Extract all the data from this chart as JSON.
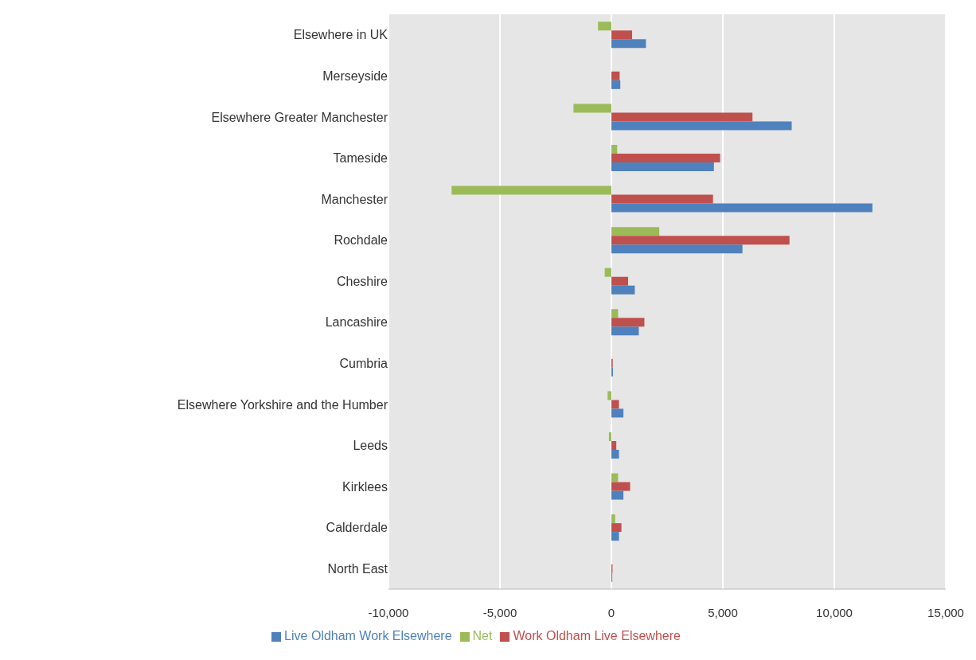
{
  "chart_data": {
    "type": "bar",
    "orientation": "horizontal",
    "categories": [
      "Elsewhere in UK",
      "Merseyside",
      "Elsewhere Greater Manchester",
      "Tameside",
      "Manchester",
      "Rochdale",
      "Cheshire",
      "Lancashire",
      "Cumbria",
      "Elsewhere Yorkshire and the Humber",
      "Leeds",
      "Kirklees",
      "Calderdale",
      "North East"
    ],
    "series": [
      {
        "name": "Net",
        "color": "#9bbb59",
        "values": [
          -600,
          null,
          -1700,
          260,
          -7170,
          2150,
          -300,
          300,
          null,
          -170,
          -110,
          300,
          170,
          null
        ]
      },
      {
        "name": "Work Oldham Live Elsewhere",
        "color": "#c0504d",
        "values": [
          930,
          370,
          6330,
          4880,
          4560,
          7990,
          750,
          1480,
          60,
          340,
          220,
          840,
          450,
          50
        ]
      },
      {
        "name": "Live Oldham Work Elsewhere",
        "color": "#4f81bd",
        "values": [
          1550,
          400,
          8090,
          4600,
          11710,
          5880,
          1050,
          1230,
          70,
          540,
          340,
          540,
          340,
          40
        ]
      }
    ],
    "xlim": [
      -10000,
      15000
    ],
    "xticks": [
      {
        "value": -10000,
        "label": "-10,000"
      },
      {
        "value": -5000,
        "label": "-5,000"
      },
      0,
      {
        "value": 5000,
        "label": "5,000"
      },
      {
        "value": 10000,
        "label": "10,000"
      },
      {
        "value": 15000,
        "label": "15,000"
      }
    ],
    "grid": "x",
    "legend": "bottom"
  }
}
